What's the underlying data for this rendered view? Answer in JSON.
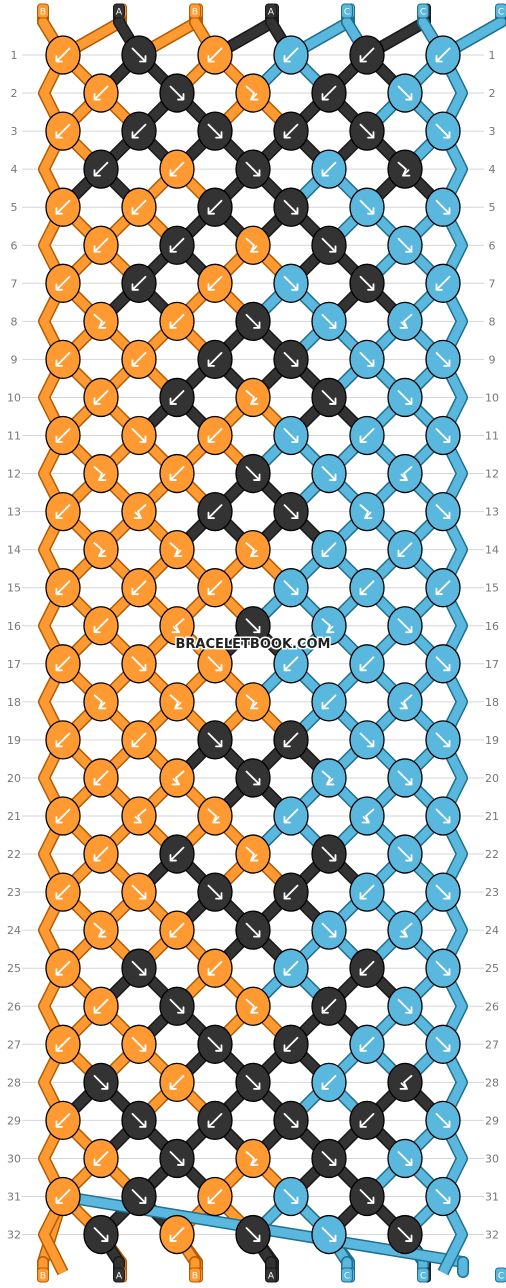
{
  "watermark": "BRACELETBOOK.COM",
  "strands_top": [
    "B",
    "B",
    "A",
    "B",
    "B",
    "A",
    "A",
    "C",
    "C",
    "A",
    "C",
    "C"
  ],
  "strands_bottom": [
    "B",
    "B",
    "A",
    "B",
    "B",
    "A",
    "A",
    "C",
    "C",
    "A",
    "C",
    "C"
  ],
  "colors": {
    "A": "#333333",
    "B": "#ff9a33",
    "C": "#5ab8de"
  },
  "row_count": 32,
  "arrow_icons": {
    "L": "arrow-down-left-icon",
    "R": "arrow-down-right-icon",
    "FL": "forward-backward-icon",
    "FR": "backward-forward-icon"
  },
  "rows": [
    {
      "number": 1,
      "knots": [
        {
          "c": "B",
          "a": "L"
        },
        {
          "c": "A",
          "a": "R"
        },
        {
          "c": "B",
          "a": "L"
        },
        {
          "c": "C",
          "a": "L"
        },
        {
          "c": "A",
          "a": "L"
        },
        {
          "c": "C",
          "a": "L"
        }
      ]
    },
    {
      "number": 2,
      "knots": [
        {
          "c": "B",
          "a": "L"
        },
        {
          "c": "A",
          "a": "R"
        },
        {
          "c": "B",
          "a": "FR"
        },
        {
          "c": "A",
          "a": "L"
        },
        {
          "c": "C",
          "a": "R"
        }
      ]
    },
    {
      "number": 3,
      "knots": [
        {
          "c": "B",
          "a": "L"
        },
        {
          "c": "A",
          "a": "L"
        },
        {
          "c": "A",
          "a": "R"
        },
        {
          "c": "A",
          "a": "L"
        },
        {
          "c": "A",
          "a": "R"
        },
        {
          "c": "C",
          "a": "R"
        }
      ]
    },
    {
      "number": 4,
      "knots": [
        {
          "c": "A",
          "a": "L"
        },
        {
          "c": "B",
          "a": "L"
        },
        {
          "c": "A",
          "a": "R"
        },
        {
          "c": "C",
          "a": "L"
        },
        {
          "c": "A",
          "a": "FR"
        }
      ]
    },
    {
      "number": 5,
      "knots": [
        {
          "c": "B",
          "a": "L"
        },
        {
          "c": "B",
          "a": "L"
        },
        {
          "c": "A",
          "a": "L"
        },
        {
          "c": "A",
          "a": "R"
        },
        {
          "c": "C",
          "a": "R"
        },
        {
          "c": "C",
          "a": "R"
        }
      ]
    },
    {
      "number": 6,
      "knots": [
        {
          "c": "B",
          "a": "L"
        },
        {
          "c": "A",
          "a": "L"
        },
        {
          "c": "B",
          "a": "FR"
        },
        {
          "c": "A",
          "a": "R"
        },
        {
          "c": "C",
          "a": "R"
        }
      ]
    },
    {
      "number": 7,
      "knots": [
        {
          "c": "B",
          "a": "L"
        },
        {
          "c": "A",
          "a": "L"
        },
        {
          "c": "B",
          "a": "L"
        },
        {
          "c": "C",
          "a": "R"
        },
        {
          "c": "A",
          "a": "R"
        },
        {
          "c": "C",
          "a": "L"
        }
      ]
    },
    {
      "number": 8,
      "knots": [
        {
          "c": "B",
          "a": "FR"
        },
        {
          "c": "B",
          "a": "L"
        },
        {
          "c": "A",
          "a": "R"
        },
        {
          "c": "C",
          "a": "R"
        },
        {
          "c": "C",
          "a": "FL"
        }
      ]
    },
    {
      "number": 9,
      "knots": [
        {
          "c": "B",
          "a": "L"
        },
        {
          "c": "B",
          "a": "L"
        },
        {
          "c": "A",
          "a": "L"
        },
        {
          "c": "A",
          "a": "R"
        },
        {
          "c": "C",
          "a": "R"
        },
        {
          "c": "C",
          "a": "R"
        }
      ]
    },
    {
      "number": 10,
      "knots": [
        {
          "c": "B",
          "a": "L"
        },
        {
          "c": "A",
          "a": "L"
        },
        {
          "c": "B",
          "a": "FR"
        },
        {
          "c": "A",
          "a": "R"
        },
        {
          "c": "C",
          "a": "R"
        }
      ]
    },
    {
      "number": 11,
      "knots": [
        {
          "c": "B",
          "a": "L"
        },
        {
          "c": "B",
          "a": "R"
        },
        {
          "c": "B",
          "a": "L"
        },
        {
          "c": "C",
          "a": "R"
        },
        {
          "c": "C",
          "a": "L"
        },
        {
          "c": "C",
          "a": "R"
        }
      ]
    },
    {
      "number": 12,
      "knots": [
        {
          "c": "B",
          "a": "FR"
        },
        {
          "c": "B",
          "a": "L"
        },
        {
          "c": "A",
          "a": "R"
        },
        {
          "c": "C",
          "a": "R"
        },
        {
          "c": "C",
          "a": "FL"
        }
      ]
    },
    {
      "number": 13,
      "knots": [
        {
          "c": "B",
          "a": "L"
        },
        {
          "c": "B",
          "a": "FL"
        },
        {
          "c": "A",
          "a": "L"
        },
        {
          "c": "A",
          "a": "R"
        },
        {
          "c": "C",
          "a": "FR"
        },
        {
          "c": "C",
          "a": "R"
        }
      ]
    },
    {
      "number": 14,
      "knots": [
        {
          "c": "B",
          "a": "FR"
        },
        {
          "c": "B",
          "a": "FR"
        },
        {
          "c": "B",
          "a": "FR"
        },
        {
          "c": "C",
          "a": "L"
        },
        {
          "c": "C",
          "a": "L"
        }
      ]
    },
    {
      "number": 15,
      "knots": [
        {
          "c": "B",
          "a": "L"
        },
        {
          "c": "B",
          "a": "L"
        },
        {
          "c": "B",
          "a": "L"
        },
        {
          "c": "C",
          "a": "R"
        },
        {
          "c": "C",
          "a": "L"
        },
        {
          "c": "C",
          "a": "L"
        }
      ]
    },
    {
      "number": 16,
      "knots": [
        {
          "c": "B",
          "a": "L"
        },
        {
          "c": "B",
          "a": "FL"
        },
        {
          "c": "A",
          "a": "R"
        },
        {
          "c": "C",
          "a": "FR"
        },
        {
          "c": "C",
          "a": "R"
        }
      ]
    },
    {
      "number": 17,
      "knots": [
        {
          "c": "B",
          "a": "L"
        },
        {
          "c": "B",
          "a": "R"
        },
        {
          "c": "B",
          "a": "R"
        },
        {
          "c": "C",
          "a": "L"
        },
        {
          "c": "C",
          "a": "L"
        },
        {
          "c": "C",
          "a": "R"
        }
      ]
    },
    {
      "number": 18,
      "knots": [
        {
          "c": "B",
          "a": "FR"
        },
        {
          "c": "B",
          "a": "FR"
        },
        {
          "c": "B",
          "a": "FR"
        },
        {
          "c": "C",
          "a": "L"
        },
        {
          "c": "C",
          "a": "FL"
        }
      ]
    },
    {
      "number": 19,
      "knots": [
        {
          "c": "B",
          "a": "L"
        },
        {
          "c": "B",
          "a": "L"
        },
        {
          "c": "A",
          "a": "R"
        },
        {
          "c": "A",
          "a": "L"
        },
        {
          "c": "C",
          "a": "R"
        },
        {
          "c": "C",
          "a": "R"
        }
      ]
    },
    {
      "number": 20,
      "knots": [
        {
          "c": "B",
          "a": "L"
        },
        {
          "c": "B",
          "a": "FL"
        },
        {
          "c": "A",
          "a": "R"
        },
        {
          "c": "C",
          "a": "FR"
        },
        {
          "c": "C",
          "a": "R"
        }
      ]
    },
    {
      "number": 21,
      "knots": [
        {
          "c": "B",
          "a": "L"
        },
        {
          "c": "B",
          "a": "FL"
        },
        {
          "c": "B",
          "a": "FR"
        },
        {
          "c": "C",
          "a": "L"
        },
        {
          "c": "C",
          "a": "FL"
        },
        {
          "c": "C",
          "a": "R"
        }
      ]
    },
    {
      "number": 22,
      "knots": [
        {
          "c": "B",
          "a": "L"
        },
        {
          "c": "A",
          "a": "L"
        },
        {
          "c": "B",
          "a": "FR"
        },
        {
          "c": "A",
          "a": "R"
        },
        {
          "c": "C",
          "a": "R"
        }
      ]
    },
    {
      "number": 23,
      "knots": [
        {
          "c": "B",
          "a": "L"
        },
        {
          "c": "B",
          "a": "R"
        },
        {
          "c": "A",
          "a": "R"
        },
        {
          "c": "A",
          "a": "L"
        },
        {
          "c": "C",
          "a": "L"
        },
        {
          "c": "C",
          "a": "R"
        }
      ]
    },
    {
      "number": 24,
      "knots": [
        {
          "c": "B",
          "a": "FR"
        },
        {
          "c": "B",
          "a": "L"
        },
        {
          "c": "A",
          "a": "R"
        },
        {
          "c": "C",
          "a": "R"
        },
        {
          "c": "C",
          "a": "FL"
        }
      ]
    },
    {
      "number": 25,
      "knots": [
        {
          "c": "B",
          "a": "L"
        },
        {
          "c": "A",
          "a": "R"
        },
        {
          "c": "B",
          "a": "L"
        },
        {
          "c": "C",
          "a": "L"
        },
        {
          "c": "A",
          "a": "L"
        },
        {
          "c": "C",
          "a": "R"
        }
      ]
    },
    {
      "number": 26,
      "knots": [
        {
          "c": "B",
          "a": "L"
        },
        {
          "c": "A",
          "a": "R"
        },
        {
          "c": "B",
          "a": "FR"
        },
        {
          "c": "A",
          "a": "L"
        },
        {
          "c": "C",
          "a": "R"
        }
      ]
    },
    {
      "number": 27,
      "knots": [
        {
          "c": "B",
          "a": "L"
        },
        {
          "c": "B",
          "a": "R"
        },
        {
          "c": "A",
          "a": "R"
        },
        {
          "c": "A",
          "a": "L"
        },
        {
          "c": "C",
          "a": "L"
        },
        {
          "c": "C",
          "a": "R"
        }
      ]
    },
    {
      "number": 28,
      "knots": [
        {
          "c": "A",
          "a": "R"
        },
        {
          "c": "B",
          "a": "L"
        },
        {
          "c": "A",
          "a": "R"
        },
        {
          "c": "C",
          "a": "L"
        },
        {
          "c": "A",
          "a": "FL"
        }
      ]
    },
    {
      "number": 29,
      "knots": [
        {
          "c": "B",
          "a": "L"
        },
        {
          "c": "A",
          "a": "R"
        },
        {
          "c": "A",
          "a": "L"
        },
        {
          "c": "A",
          "a": "R"
        },
        {
          "c": "A",
          "a": "L"
        },
        {
          "c": "C",
          "a": "R"
        }
      ]
    },
    {
      "number": 30,
      "knots": [
        {
          "c": "B",
          "a": "L"
        },
        {
          "c": "A",
          "a": "R"
        },
        {
          "c": "B",
          "a": "FR"
        },
        {
          "c": "A",
          "a": "R"
        },
        {
          "c": "C",
          "a": "R"
        }
      ]
    },
    {
      "number": 31,
      "knots": [
        {
          "c": "B",
          "a": "L"
        },
        {
          "c": "A",
          "a": "R"
        },
        {
          "c": "B",
          "a": "L"
        },
        {
          "c": "C",
          "a": "R"
        },
        {
          "c": "A",
          "a": "R"
        },
        {
          "c": "C",
          "a": "R"
        }
      ]
    },
    {
      "number": 32,
      "knots": [
        {
          "c": "A",
          "a": "R"
        },
        {
          "c": "B",
          "a": "L"
        },
        {
          "c": "A",
          "a": "R"
        },
        {
          "c": "C",
          "a": "R"
        },
        {
          "c": "A",
          "a": "R"
        }
      ]
    }
  ]
}
